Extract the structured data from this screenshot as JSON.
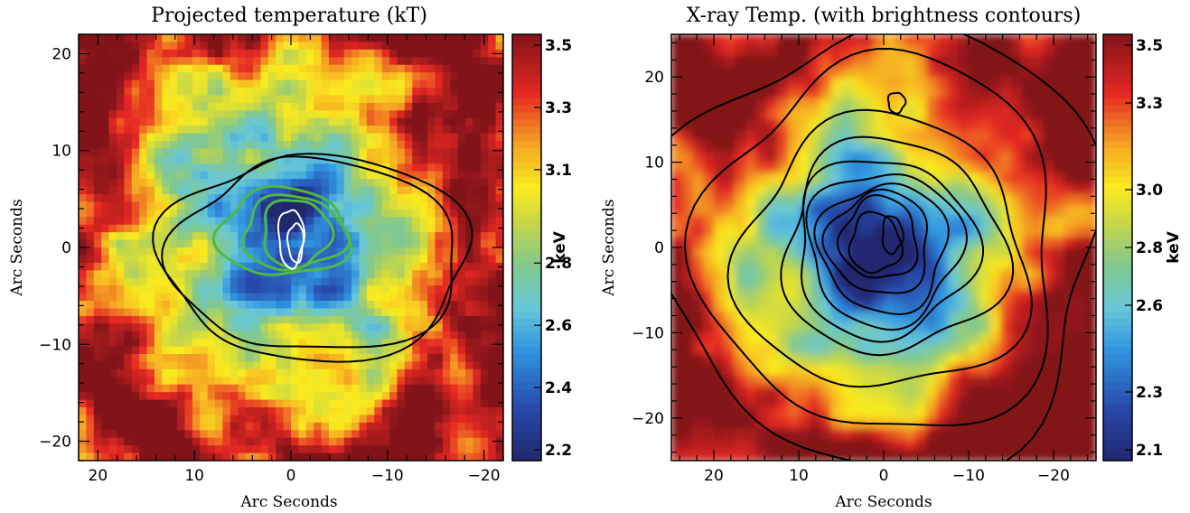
{
  "chart_data": [
    {
      "type": "heatmap",
      "title": "Projected temperature (kT)",
      "xlabel": "Arc Seconds",
      "ylabel": "Arc Seconds",
      "xlim": [
        22,
        -22
      ],
      "ylim": [
        -22,
        22
      ],
      "x_ticks": [
        20,
        10,
        0,
        -10,
        -20
      ],
      "x_tick_labels": [
        "20",
        "10",
        "0",
        "−10",
        "−20"
      ],
      "y_ticks": [
        20,
        10,
        0,
        -10,
        -20
      ],
      "y_tick_labels": [
        "20",
        "10",
        "0",
        "−10",
        "−20"
      ],
      "colorbar": {
        "label": "keV",
        "range": [
          2.2,
          3.5
        ],
        "ticks": [
          3.5,
          3.3,
          3.1,
          2.8,
          2.6,
          2.4,
          2.2
        ],
        "tick_labels": [
          "3.5",
          "3.3",
          "3.1",
          "2.8",
          "2.6",
          "2.4",
          "2.2"
        ]
      },
      "field": {
        "style": "pixelated",
        "core_value": 2.2,
        "edge_value": 3.5,
        "core_center": [
          1,
          1
        ],
        "core_radius": 15
      },
      "contours": [
        {
          "color": "#000000",
          "center": [
            0,
            -1
          ],
          "rx": 13,
          "ry": 10.5,
          "shift_x": -10,
          "level": 1
        },
        {
          "color": "#000000",
          "center": [
            0,
            -1
          ],
          "rx": 12,
          "ry": 9.8,
          "shift_x": -10,
          "level": 2
        },
        {
          "color": "#4fb848",
          "center": [
            1,
            1.5
          ],
          "rx": 6.5,
          "ry": 4.5,
          "shift_x": -1,
          "level": 3
        },
        {
          "color": "#4fb848",
          "center": [
            0,
            1.5
          ],
          "rx": 5,
          "ry": 3.8,
          "shift_x": -1,
          "level": 4
        },
        {
          "color": "#4fb848",
          "center": [
            -0.5,
            1.5
          ],
          "rx": 3.5,
          "ry": 3.5,
          "shift_x": 0,
          "level": 5
        },
        {
          "color": "#ffffff",
          "center": [
            0,
            1
          ],
          "rx": 1.3,
          "ry": 3,
          "shift_x": 0,
          "level": 6
        },
        {
          "color": "#ffffff",
          "center": [
            -0.5,
            0.5
          ],
          "rx": 0.8,
          "ry": 2,
          "shift_x": 0,
          "level": 7
        }
      ]
    },
    {
      "type": "heatmap",
      "title": "X-ray Temp. (with brightness contours)",
      "xlabel": "Arc Seconds",
      "ylabel": "Arc Seconds",
      "xlim": [
        25,
        -25
      ],
      "ylim": [
        -25,
        25
      ],
      "x_ticks": [
        20,
        10,
        0,
        -10,
        -20
      ],
      "x_tick_labels": [
        "20",
        "10",
        "0",
        "−10",
        "−20"
      ],
      "y_ticks": [
        20,
        10,
        0,
        -10,
        -20
      ],
      "y_tick_labels": [
        "20",
        "10",
        "0",
        "−10",
        "−20"
      ],
      "colorbar": {
        "label": "keV",
        "range": [
          2.1,
          3.5
        ],
        "ticks": [
          3.5,
          3.3,
          3.0,
          2.8,
          2.6,
          2.3,
          2.1
        ],
        "tick_labels": [
          "3.5",
          "3.3",
          "3.0",
          "2.8",
          "2.6",
          "2.3",
          "2.1"
        ]
      },
      "field": {
        "style": "smooth",
        "core_value": 2.1,
        "edge_value": 3.5,
        "core_center": [
          1,
          0
        ],
        "core_radius": 16
      },
      "contours": [
        {
          "color": "#000000",
          "center": [
            0,
            0
          ],
          "rx": 26,
          "ry": 26,
          "shift_x": 0,
          "level": 1
        },
        {
          "color": "#000000",
          "center": [
            0,
            0
          ],
          "rx": 21,
          "ry": 22,
          "shift_x": 0,
          "level": 2
        },
        {
          "color": "#000000",
          "center": [
            0,
            -1
          ],
          "rx": 17,
          "ry": 16,
          "shift_x": 0,
          "level": 3
        },
        {
          "color": "#000000",
          "center": [
            -1,
            0
          ],
          "rx": 13,
          "ry": 12.5,
          "shift_x": 0,
          "level": 4
        },
        {
          "color": "#000000",
          "center": [
            0,
            0
          ],
          "rx": 10.5,
          "ry": 10.5,
          "shift_x": 0,
          "level": 5
        },
        {
          "color": "#000000",
          "center": [
            0,
            0
          ],
          "rx": 9,
          "ry": 9,
          "shift_x": 0,
          "level": 6
        },
        {
          "color": "#000000",
          "center": [
            0,
            0
          ],
          "rx": 7.5,
          "ry": 7.5,
          "shift_x": 0,
          "level": 7
        },
        {
          "color": "#000000",
          "center": [
            0.5,
            0.5
          ],
          "rx": 6,
          "ry": 6,
          "shift_x": 0,
          "level": 8
        },
        {
          "color": "#000000",
          "center": [
            0.5,
            1
          ],
          "rx": 4.5,
          "ry": 4.8,
          "shift_x": 0,
          "level": 9
        },
        {
          "color": "#000000",
          "center": [
            1,
            0.5
          ],
          "rx": 3,
          "ry": 3.5,
          "shift_x": 0,
          "level": 10
        },
        {
          "color": "#000000",
          "center": [
            -1,
            1.5
          ],
          "rx": 1.2,
          "ry": 2.2,
          "shift_x": 0,
          "level": 11
        },
        {
          "color": "#000000",
          "center": [
            -1.5,
            17
          ],
          "rx": 1,
          "ry": 1.2,
          "shift_x": 0,
          "level": 12
        }
      ]
    }
  ]
}
